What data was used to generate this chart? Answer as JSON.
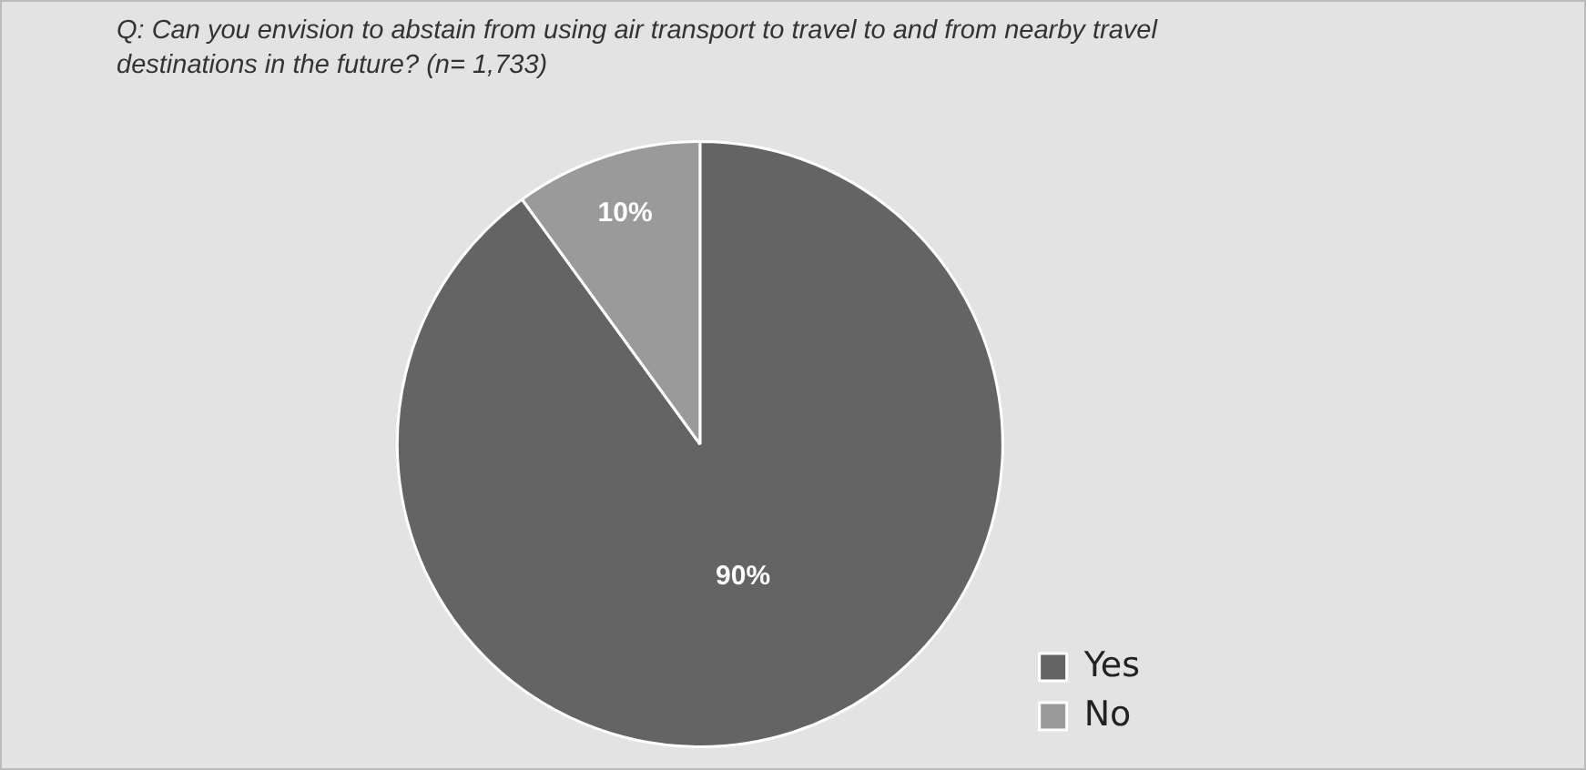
{
  "chart_data": {
    "type": "pie",
    "title": "Q: Can you envision to abstain from using air transport to travel to and from nearby travel destinations in the future? (n= 1,733)",
    "categories": [
      "Yes",
      "No"
    ],
    "values": [
      90,
      10
    ],
    "colors": [
      "#646464",
      "#9a9a9a"
    ],
    "value_labels": [
      "90%",
      "10%"
    ],
    "legend": "bottom right"
  }
}
